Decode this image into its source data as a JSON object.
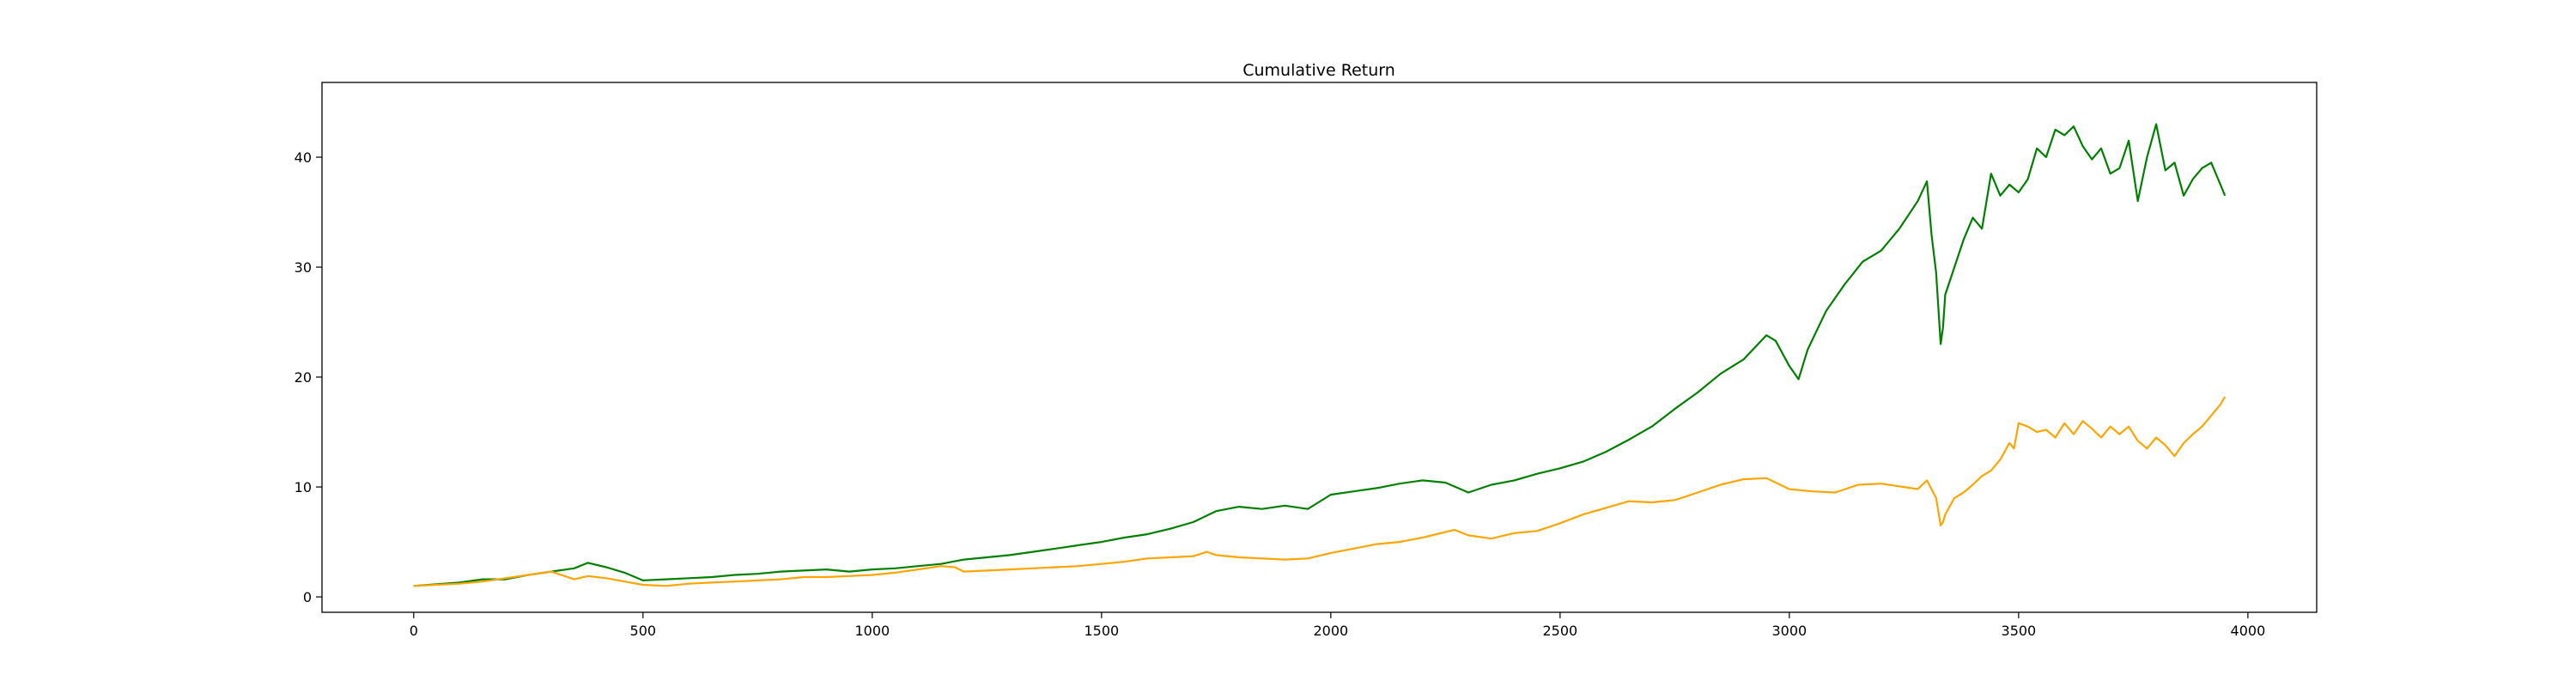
{
  "chart_data": {
    "type": "line",
    "title": "Cumulative Return",
    "xlabel": "",
    "ylabel": "",
    "xlim": [
      -200,
      4150
    ],
    "ylim": [
      -1.4,
      46.8
    ],
    "xticks": [
      0,
      500,
      1000,
      1500,
      2000,
      2500,
      3000,
      3500,
      4000
    ],
    "yticks": [
      0,
      10,
      20,
      30,
      40
    ],
    "grid": false,
    "legend": "none",
    "series": [
      {
        "color": "#008000",
        "x": [
          0,
          50,
          100,
          150,
          200,
          250,
          300,
          350,
          380,
          420,
          460,
          500,
          550,
          600,
          650,
          700,
          750,
          800,
          850,
          900,
          950,
          1000,
          1050,
          1100,
          1150,
          1200,
          1250,
          1300,
          1350,
          1400,
          1450,
          1500,
          1550,
          1600,
          1650,
          1700,
          1750,
          1800,
          1850,
          1900,
          1950,
          2000,
          2050,
          2100,
          2150,
          2200,
          2250,
          2300,
          2350,
          2400,
          2450,
          2500,
          2550,
          2600,
          2650,
          2700,
          2750,
          2800,
          2850,
          2900,
          2950,
          2970,
          3000,
          3020,
          3040,
          3080,
          3120,
          3160,
          3200,
          3240,
          3280,
          3300,
          3310,
          3320,
          3330,
          3335,
          3340,
          3360,
          3380,
          3400,
          3420,
          3440,
          3460,
          3480,
          3500,
          3520,
          3540,
          3560,
          3580,
          3600,
          3620,
          3640,
          3660,
          3680,
          3700,
          3720,
          3740,
          3760,
          3780,
          3800,
          3820,
          3840,
          3860,
          3880,
          3900,
          3920,
          3940,
          3950
        ],
        "values": [
          1.0,
          1.15,
          1.3,
          1.6,
          1.6,
          2.0,
          2.3,
          2.6,
          3.1,
          2.7,
          2.2,
          1.5,
          1.6,
          1.7,
          1.8,
          2.0,
          2.1,
          2.3,
          2.4,
          2.5,
          2.3,
          2.5,
          2.6,
          2.8,
          3.0,
          3.4,
          3.6,
          3.8,
          4.1,
          4.4,
          4.7,
          5.0,
          5.4,
          5.7,
          6.2,
          6.8,
          7.8,
          8.2,
          8.0,
          8.3,
          8.0,
          9.3,
          9.6,
          9.9,
          10.3,
          10.6,
          10.4,
          9.5,
          10.2,
          10.6,
          11.2,
          11.7,
          12.3,
          13.2,
          14.3,
          15.5,
          17.1,
          18.6,
          20.3,
          21.6,
          23.8,
          23.3,
          21.0,
          19.8,
          22.5,
          26.0,
          28.4,
          30.5,
          31.5,
          33.5,
          36.0,
          37.8,
          33.0,
          29.5,
          23.0,
          24.5,
          27.5,
          30.0,
          32.5,
          34.5,
          33.5,
          38.5,
          36.5,
          37.5,
          36.8,
          38.0,
          40.8,
          40.0,
          42.5,
          42.0,
          42.8,
          41.0,
          39.8,
          40.8,
          38.5,
          39.0,
          41.5,
          36.0,
          40.0,
          43.0,
          38.8,
          39.5,
          36.5,
          38.0,
          39.0,
          39.5,
          37.5,
          36.5
        ]
      },
      {
        "color": "#ffa500",
        "x": [
          0,
          50,
          100,
          150,
          200,
          250,
          300,
          350,
          380,
          420,
          460,
          500,
          550,
          600,
          650,
          700,
          750,
          800,
          850,
          900,
          950,
          1000,
          1050,
          1100,
          1150,
          1180,
          1200,
          1250,
          1300,
          1350,
          1400,
          1450,
          1500,
          1550,
          1600,
          1650,
          1700,
          1730,
          1750,
          1800,
          1850,
          1900,
          1950,
          2000,
          2050,
          2100,
          2150,
          2200,
          2250,
          2270,
          2300,
          2350,
          2400,
          2450,
          2500,
          2550,
          2600,
          2650,
          2700,
          2750,
          2800,
          2850,
          2900,
          2950,
          3000,
          3050,
          3100,
          3150,
          3200,
          3250,
          3280,
          3300,
          3320,
          3330,
          3335,
          3340,
          3360,
          3380,
          3400,
          3420,
          3440,
          3460,
          3480,
          3490,
          3500,
          3520,
          3540,
          3560,
          3580,
          3600,
          3620,
          3640,
          3660,
          3680,
          3700,
          3720,
          3740,
          3760,
          3780,
          3800,
          3820,
          3840,
          3860,
          3880,
          3900,
          3920,
          3940,
          3950
        ],
        "values": [
          1.0,
          1.1,
          1.2,
          1.4,
          1.7,
          2.0,
          2.3,
          1.6,
          1.9,
          1.7,
          1.4,
          1.1,
          1.0,
          1.2,
          1.3,
          1.4,
          1.5,
          1.6,
          1.8,
          1.8,
          1.9,
          2.0,
          2.2,
          2.5,
          2.8,
          2.7,
          2.3,
          2.4,
          2.5,
          2.6,
          2.7,
          2.8,
          3.0,
          3.2,
          3.5,
          3.6,
          3.7,
          4.1,
          3.8,
          3.6,
          3.5,
          3.4,
          3.5,
          4.0,
          4.4,
          4.8,
          5.0,
          5.4,
          5.9,
          6.1,
          5.6,
          5.3,
          5.8,
          6.0,
          6.7,
          7.5,
          8.1,
          8.7,
          8.6,
          8.8,
          9.5,
          10.2,
          10.7,
          10.8,
          9.8,
          9.6,
          9.5,
          10.2,
          10.3,
          10.0,
          9.8,
          10.6,
          9.0,
          6.5,
          6.8,
          7.5,
          9.0,
          9.5,
          10.2,
          11.0,
          11.5,
          12.5,
          14.0,
          13.5,
          15.8,
          15.5,
          15.0,
          15.2,
          14.5,
          15.8,
          14.8,
          16.0,
          15.3,
          14.5,
          15.5,
          14.8,
          15.5,
          14.2,
          13.5,
          14.5,
          13.8,
          12.8,
          14.0,
          14.8,
          15.5,
          16.5,
          17.5,
          18.2
        ]
      }
    ]
  }
}
